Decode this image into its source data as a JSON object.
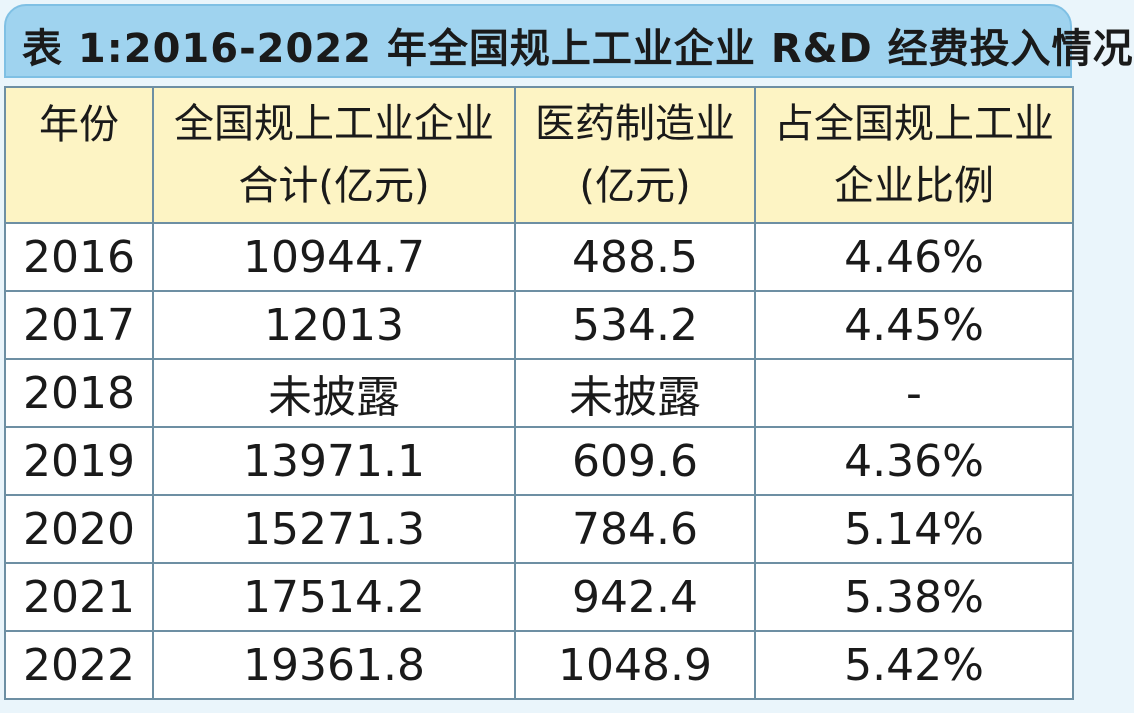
{
  "title": "表 1:2016-2022 年全国规上工业企业 R&D 经费投入情况",
  "headers": [
    {
      "line1": "年份",
      "line2": ""
    },
    {
      "line1": "全国规上工业企业",
      "line2": "合计(亿元)"
    },
    {
      "line1": "医药制造业",
      "line2": "(亿元)"
    },
    {
      "line1": "占全国规上工业",
      "line2": "企业比例"
    }
  ],
  "rows": [
    {
      "year": "2016",
      "total": "10944.7",
      "pharma": "488.5",
      "ratio": "4.46%"
    },
    {
      "year": "2017",
      "total": "12013",
      "pharma": "534.2",
      "ratio": "4.45%"
    },
    {
      "year": "2018",
      "total": "未披露",
      "pharma": "未披露",
      "ratio": "-"
    },
    {
      "year": "2019",
      "total": "13971.1",
      "pharma": "609.6",
      "ratio": "4.36%"
    },
    {
      "year": "2020",
      "total": "15271.3",
      "pharma": "784.6",
      "ratio": "5.14%"
    },
    {
      "year": "2021",
      "total": "17514.2",
      "pharma": "942.4",
      "ratio": "5.38%"
    },
    {
      "year": "2022",
      "total": "19361.8",
      "pharma": "1048.9",
      "ratio": "5.42%"
    }
  ]
}
